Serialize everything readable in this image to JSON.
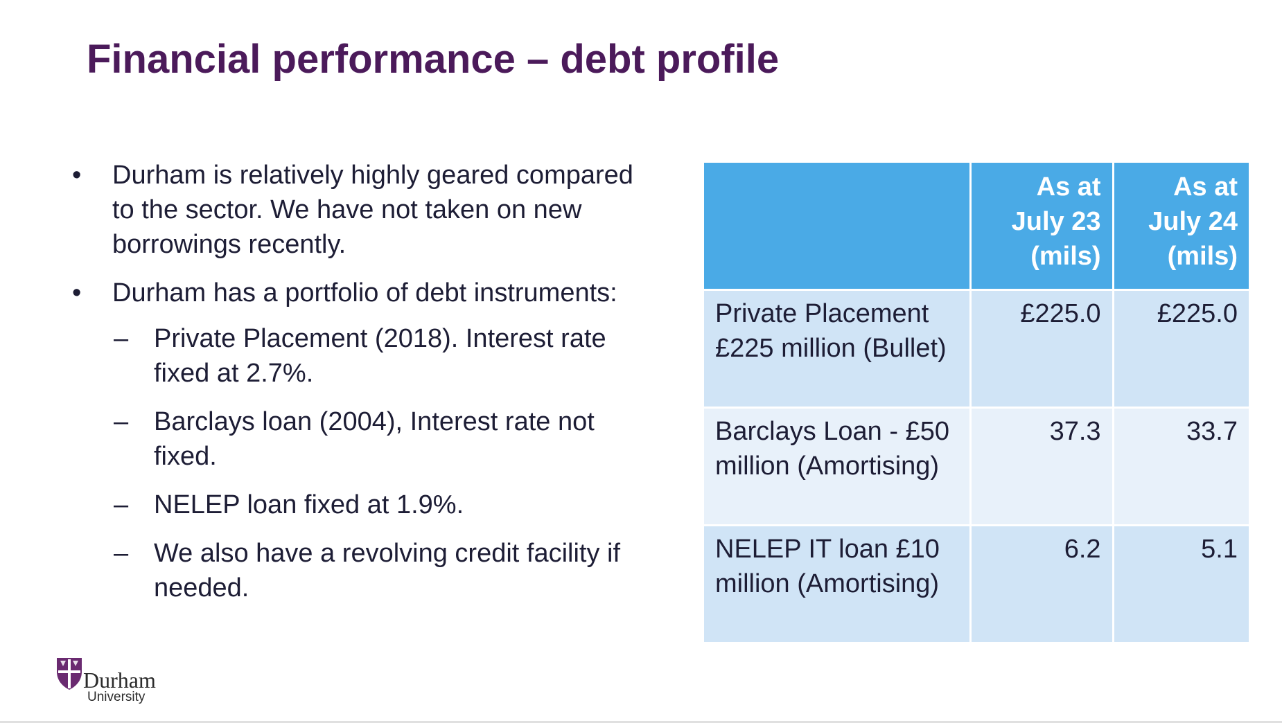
{
  "slide": {
    "title": "Financial performance – debt profile"
  },
  "content": {
    "bullets": [
      {
        "mark": "•",
        "text": "Durham is relatively highly geared compared to the sector. We have not taken on new borrowings recently."
      },
      {
        "mark": "•",
        "text": "Durham has a portfolio of debt instruments:",
        "sub_items": [
          {
            "mark": "–",
            "text": "Private Placement (2018). Interest rate fixed at 2.7%."
          },
          {
            "mark": "–",
            "text": "Barclays loan (2004),  Interest rate not fixed."
          },
          {
            "mark": "–",
            "text": "NELEP loan fixed at 1.9%."
          },
          {
            "mark": "–",
            "text": "We also have a revolving credit facility if needed."
          }
        ]
      }
    ]
  },
  "table": {
    "headers": [
      "",
      "As at July 23 (mils)",
      "As at July 24 (mils)"
    ],
    "rows": [
      {
        "label": "Private Placement £225 million (Bullet)",
        "jul23": "£225.0",
        "jul24": "£225.0"
      },
      {
        "label": "Barclays Loan - £50 million (Amortising)",
        "jul23": "37.3",
        "jul24": "33.7"
      },
      {
        "label": "NELEP IT loan £10 million (Amortising)",
        "jul23": "6.2",
        "jul24": "5.1"
      }
    ],
    "colors": {
      "header_bg": "#4aaae6",
      "row_dark": "#d0e4f6",
      "row_light": "#e8f1fa"
    }
  },
  "logo": {
    "name": "Durham",
    "sub": "University",
    "icon": "durham-shield-icon",
    "color": "#6a2a70"
  },
  "colors": {
    "title": "#4b1a5a",
    "body_text": "#1d1d35"
  }
}
